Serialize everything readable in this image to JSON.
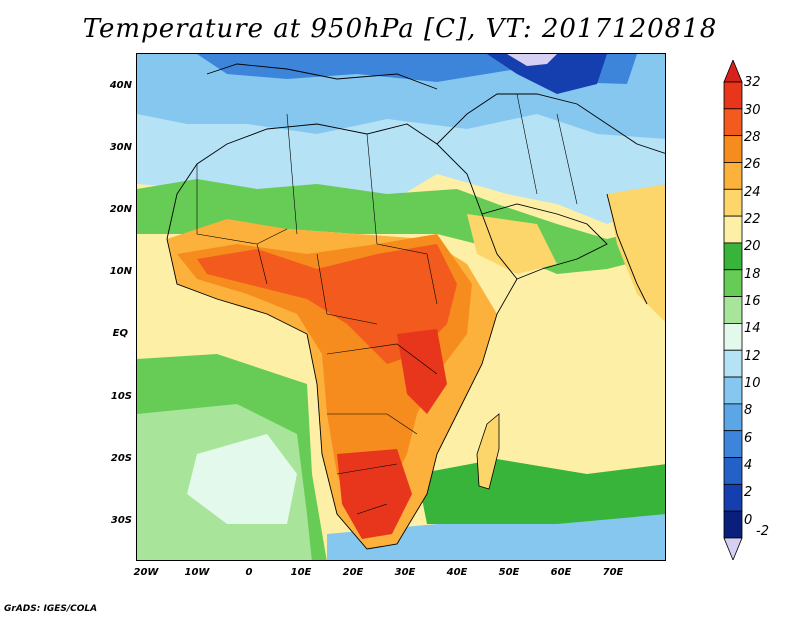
{
  "title": "Temperature at 950hPa [C], VT: 2017120818",
  "footer": "GrADS: IGES/COLA",
  "axes": {
    "lat_labels": [
      "40N",
      "30N",
      "20N",
      "10N",
      "EQ",
      "10S",
      "20S",
      "30S"
    ],
    "lon_labels": [
      "20W",
      "10W",
      "0",
      "10E",
      "20E",
      "30E",
      "40E",
      "50E",
      "60E",
      "70E"
    ]
  },
  "colorbar": {
    "labels": [
      "32",
      "30",
      "28",
      "26",
      "24",
      "22",
      "20",
      "18",
      "16",
      "14",
      "12",
      "10",
      "8",
      "6",
      "4",
      "2",
      "0",
      "-2"
    ],
    "colors": {
      "top_arrow": "#d6221a",
      "30_32": "#e8361c",
      "28_30": "#f25a1e",
      "26_28": "#f78c1e",
      "24_26": "#fbb13c",
      "22_24": "#fcd66a",
      "20_22": "#fdf0a6",
      "18_20": "#38b43a",
      "16_18": "#66cc55",
      "14_16": "#a8e49a",
      "12_14": "#e2f9ec",
      "10_12": "#b5e2f5",
      "8_10": "#86c7ef",
      "6_8": "#5ba7e6",
      "4_6": "#3d85db",
      "2_4": "#2361c7",
      "0_2": "#153fae",
      "neg2_0": "#0a1f7c",
      "bottom_arrow": "#d6d0f5"
    }
  }
}
